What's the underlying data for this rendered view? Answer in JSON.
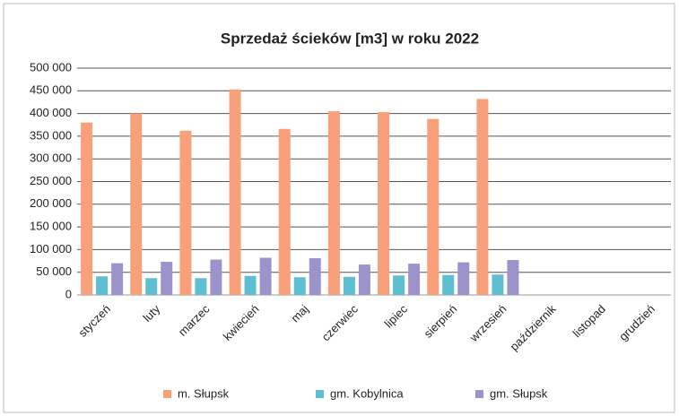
{
  "chart_data": {
    "type": "bar",
    "title": "Sprzedaż ścieków [m3] w roku 2022",
    "categories": [
      "styczeń",
      "luty",
      "marzec",
      "kwiecień",
      "maj",
      "czerwiec",
      "lipiec",
      "sierpień",
      "wrzesień",
      "październik",
      "listopad",
      "grudzień"
    ],
    "series": [
      {
        "name": "m. Słupsk",
        "color": "#f7a07a",
        "values": [
          380000,
          400000,
          362000,
          453000,
          366000,
          405000,
          403000,
          388000,
          432000,
          null,
          null,
          null
        ]
      },
      {
        "name": "gm. Kobylnica",
        "color": "#5fbfd2",
        "values": [
          41000,
          37000,
          37000,
          42000,
          39000,
          40000,
          43000,
          44000,
          45000,
          null,
          null,
          null
        ]
      },
      {
        "name": "gm. Słupsk",
        "color": "#9d93cb",
        "values": [
          70000,
          73000,
          78000,
          82000,
          81000,
          67000,
          69000,
          72000,
          77000,
          null,
          null,
          null
        ]
      }
    ],
    "ylim": [
      0,
      500000
    ],
    "yticks": [
      0,
      {
        "value": 50000,
        "label": "50 000"
      },
      {
        "value": 100000,
        "label": "100 000"
      },
      {
        "value": 150000,
        "label": "150 000"
      },
      {
        "value": 200000,
        "label": "200 000"
      },
      {
        "value": 250000,
        "label": "250 000"
      },
      {
        "value": 300000,
        "label": "300 000"
      },
      {
        "value": 350000,
        "label": "350 000"
      },
      {
        "value": 400000,
        "label": "400 000"
      },
      {
        "value": 450000,
        "label": "450 000"
      },
      {
        "value": 500000,
        "label": "500 000"
      }
    ],
    "grid": true,
    "legend": "bottom"
  }
}
